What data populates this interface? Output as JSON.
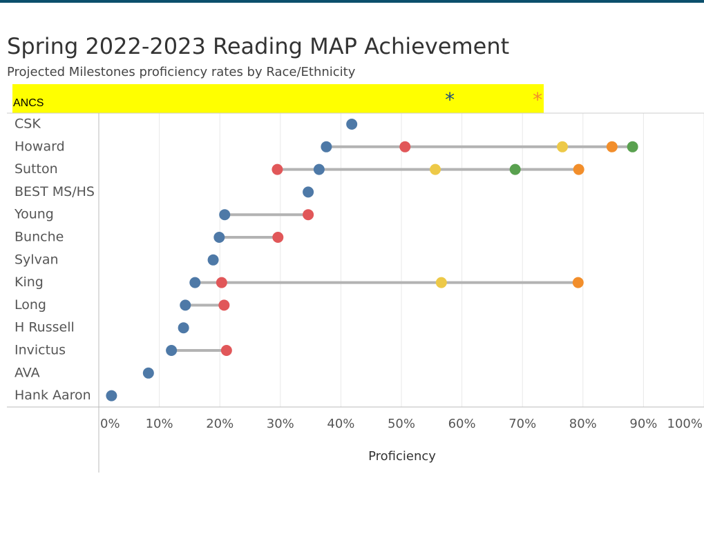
{
  "chart_data": {
    "type": "dot",
    "title": "Spring 2022-2023 Reading MAP Achievement",
    "subtitle": "Projected Milestones proficiency rates by Race/Ethnicity",
    "x_label": "Proficiency",
    "categories": [
      "ANCS",
      "CSK",
      "Howard",
      "Sutton",
      "BEST MS/HS",
      "Young",
      "Bunche",
      "Sylvan",
      "King",
      "Long",
      "H Russell",
      "Invictus",
      "AVA",
      "Hank Aaron"
    ],
    "highlight_row": 0,
    "highlight_marker": "*",
    "highlight_color": "#ffff00",
    "series": [
      {
        "color": "#4e79a7",
        "values": [
          58.0,
          41.8,
          37.6,
          36.4,
          34.6,
          20.8,
          19.9,
          18.9,
          15.9,
          14.3,
          14.0,
          12.0,
          8.2,
          2.1
        ]
      },
      {
        "color": "#e15759",
        "values": [
          null,
          null,
          50.6,
          29.5,
          null,
          34.6,
          29.6,
          null,
          20.3,
          20.7,
          null,
          21.1,
          null,
          null
        ]
      },
      {
        "color": "#edc948",
        "values": [
          null,
          null,
          76.6,
          55.6,
          null,
          null,
          null,
          null,
          56.6,
          null,
          null,
          null,
          null,
          null
        ]
      },
      {
        "color": "#59a14f",
        "values": [
          null,
          null,
          88.2,
          68.8,
          null,
          null,
          null,
          null,
          null,
          null,
          null,
          null,
          null,
          null
        ]
      },
      {
        "color": "#f28e2b",
        "values": [
          72.5,
          null,
          84.8,
          79.3,
          null,
          null,
          null,
          null,
          79.2,
          null,
          null,
          null,
          null,
          null
        ]
      }
    ],
    "xlim": [
      0,
      100
    ],
    "xticks": [
      {
        "value": 0,
        "label": "0%"
      },
      {
        "value": 10,
        "label": "10%"
      },
      {
        "value": 20,
        "label": "20%"
      },
      {
        "value": 30,
        "label": "30%"
      },
      {
        "value": 40,
        "label": "40%"
      },
      {
        "value": 50,
        "label": "50%"
      },
      {
        "value": 60,
        "label": "60%"
      },
      {
        "value": 70,
        "label": "70%"
      },
      {
        "value": 80,
        "label": "80%"
      },
      {
        "value": 90,
        "label": "90%"
      },
      {
        "value": 100,
        "label": "100%"
      }
    ],
    "grid": true
  }
}
